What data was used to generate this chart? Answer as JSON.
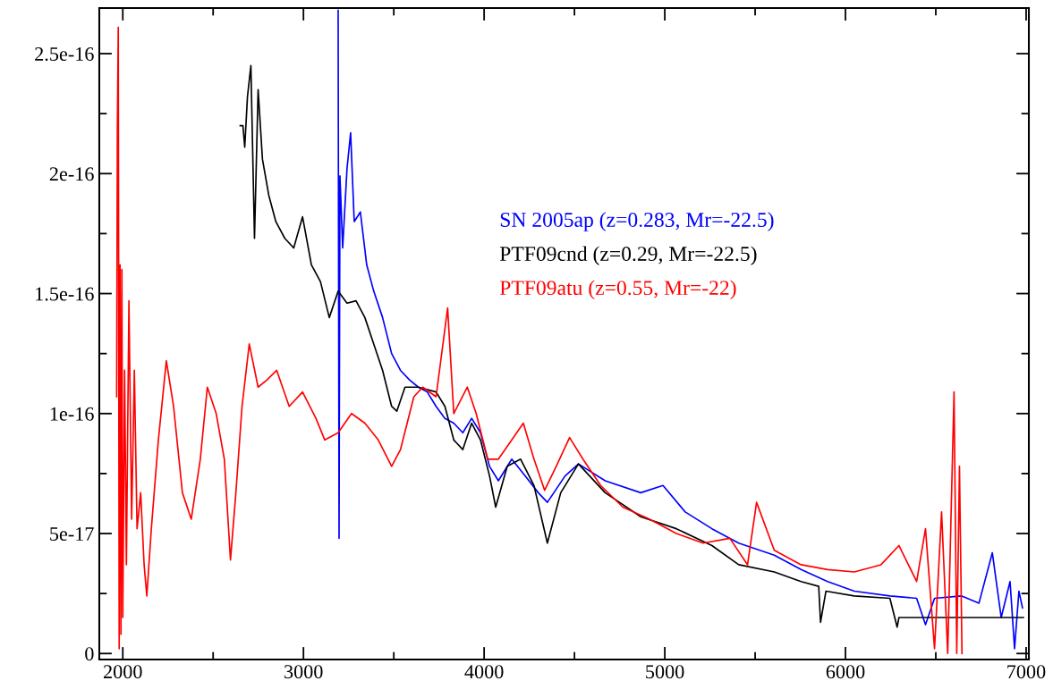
{
  "chart_data": {
    "type": "line",
    "xlim": [
      1870,
      7015
    ],
    "ylim": [
      -2.5e-18,
      2.69e-16
    ],
    "xticks": [
      2000,
      {
        "value": 2500,
        "label": null
      },
      3000,
      {
        "value": 3500,
        "label": null
      },
      4000,
      {
        "value": 4500,
        "label": null
      },
      5000,
      {
        "value": 5500,
        "label": null
      },
      6000,
      {
        "value": 6500,
        "label": null
      },
      7000
    ],
    "yticks": [
      {
        "value": 0,
        "label": "0"
      },
      {
        "value": 2.5e-17,
        "label": null
      },
      {
        "value": 5e-17,
        "label": "5e-17"
      },
      {
        "value": 7.5e-17,
        "label": null
      },
      {
        "value": 1e-16,
        "label": "1e-16"
      },
      {
        "value": 1.25e-16,
        "label": null
      },
      {
        "value": 1.5e-16,
        "label": "1.5e-16"
      },
      {
        "value": 1.75e-16,
        "label": null
      },
      {
        "value": 2e-16,
        "label": "2e-16"
      },
      {
        "value": 2.25e-16,
        "label": null
      },
      {
        "value": 2.5e-16,
        "label": "2.5e-16"
      }
    ],
    "grid": false,
    "legend": "right",
    "marker": "none",
    "line_style": "solid",
    "series": [
      {
        "name": "SN 2005ap (z=0.283, Mr=-22.5)",
        "color": "#0000ff",
        "x": [
          3192,
          3197,
          3202,
          3217,
          3241,
          3261,
          3281,
          3315,
          3350,
          3389,
          3438,
          3488,
          3537,
          3587,
          3636,
          3685,
          3734,
          3783,
          3832,
          3882,
          3931,
          3980,
          4030,
          4079,
          4153,
          4227,
          4300,
          4350,
          4448,
          4522,
          4670,
          4867,
          4990,
          5113,
          5261,
          5409,
          5606,
          5754,
          5901,
          6049,
          6246,
          6394,
          6443,
          6493,
          6641,
          6739,
          6813,
          6862,
          6911,
          6936,
          6960,
          6980
        ],
        "values": [
          2.68e-16,
          4.8e-17,
          1.99e-16,
          1.69e-16,
          2.02e-16,
          2.17e-16,
          1.8e-16,
          1.84e-16,
          1.62e-16,
          1.51e-16,
          1.4e-16,
          1.25e-16,
          1.18e-16,
          1.14e-16,
          1.11e-16,
          1.09e-16,
          1.03e-16,
          9.8e-17,
          9.6e-17,
          9.2e-17,
          9.8e-17,
          9.2e-17,
          7.8e-17,
          7.2e-17,
          8.1e-17,
          7.4e-17,
          6.7e-17,
          6.3e-17,
          7.4e-17,
          7.9e-17,
          7.2e-17,
          6.7e-17,
          7e-17,
          5.9e-17,
          5.2e-17,
          4.6e-17,
          4.1e-17,
          3.5e-17,
          3e-17,
          2.6e-17,
          2.4e-17,
          2.3e-17,
          1.2e-17,
          2.3e-17,
          2.4e-17,
          2.1e-17,
          4.2e-17,
          1.5e-17,
          3e-17,
          2e-18,
          2.6e-17,
          1.9e-17
        ]
      },
      {
        "name": "PTF09cnd (z=0.29, Mr=-22.5)",
        "color": "#000000",
        "x": [
          2650,
          2665,
          2675,
          2690,
          2709,
          2729,
          2749,
          2773,
          2808,
          2847,
          2897,
          2946,
          2995,
          3044,
          3094,
          3143,
          3192,
          3241,
          3291,
          3340,
          3389,
          3438,
          3488,
          3517,
          3562,
          3636,
          3734,
          3783,
          3832,
          3882,
          3931,
          3980,
          4030,
          4064,
          4128,
          4202,
          4276,
          4350,
          4424,
          4522,
          4670,
          4867,
          5064,
          5261,
          5409,
          5606,
          5754,
          5852,
          5862,
          5892,
          6049,
          6246,
          6286,
          6296,
          6985
        ],
        "values": [
          2.2e-16,
          2.2e-16,
          2.11e-16,
          2.32e-16,
          2.45e-16,
          1.73e-16,
          2.35e-16,
          2.06e-16,
          1.91e-16,
          1.8e-16,
          1.73e-16,
          1.69e-16,
          1.82e-16,
          1.62e-16,
          1.55e-16,
          1.4e-16,
          1.51e-16,
          1.46e-16,
          1.47e-16,
          1.4e-16,
          1.29e-16,
          1.18e-16,
          1.03e-16,
          1.01e-16,
          1.11e-16,
          1.11e-16,
          1.09e-16,
          1.03e-16,
          8.9e-17,
          8.5e-17,
          9.6e-17,
          8.9e-17,
          7.4e-17,
          6.1e-17,
          7.8e-17,
          8.1e-17,
          7e-17,
          4.6e-17,
          6.7e-17,
          7.9e-17,
          6.7e-17,
          5.7e-17,
          5.2e-17,
          4.5e-17,
          3.7e-17,
          3.4e-17,
          3e-17,
          2.8e-17,
          1.3e-17,
          2.6e-17,
          2.4e-17,
          2.3e-17,
          1.1e-17,
          1.5e-17,
          1.5e-17
        ]
      },
      {
        "name": "PTF09atu (z=0.55, Mr=-22)",
        "color": "#ff0000",
        "x": [
          1966,
          1970,
          1975,
          1980,
          1985,
          1990,
          1995,
          2000,
          2010,
          2020,
          2034,
          2049,
          2064,
          2079,
          2099,
          2118,
          2133,
          2158,
          2197,
          2241,
          2281,
          2330,
          2379,
          2429,
          2468,
          2517,
          2562,
          2596,
          2626,
          2660,
          2700,
          2749,
          2798,
          2852,
          2921,
          2995,
          3069,
          3118,
          3192,
          3266,
          3340,
          3414,
          3488,
          3537,
          3611,
          3660,
          3734,
          3798,
          3832,
          3907,
          3956,
          4020,
          4079,
          4153,
          4217,
          4276,
          4335,
          4399,
          4473,
          4547,
          4645,
          4768,
          4916,
          5064,
          5212,
          5360,
          5458,
          5508,
          5606,
          5754,
          5901,
          6049,
          6197,
          6296,
          6394,
          6443,
          6493,
          6532,
          6566,
          6601,
          6616,
          6631,
          6645
        ],
        "values": [
          1.07e-16,
          2.19e-16,
          2.61e-16,
          2e-18,
          1.62e-16,
          8e-18,
          1.6e-16,
          1.5e-17,
          1.18e-16,
          3.7e-17,
          1.47e-16,
          5.6e-17,
          1.18e-16,
          5.2e-17,
          6.7e-17,
          3.7e-17,
          2.4e-17,
          5.2e-17,
          8.9e-17,
          1.22e-16,
          1.03e-16,
          6.7e-17,
          5.6e-17,
          8.1e-17,
          1.11e-16,
          1e-16,
          8.1e-17,
          3.9e-17,
          6.7e-17,
          1.03e-16,
          1.29e-16,
          1.11e-16,
          1.14e-16,
          1.18e-16,
          1.03e-16,
          1.09e-16,
          9.8e-17,
          8.9e-17,
          9.2e-17,
          1e-16,
          9.6e-17,
          8.9e-17,
          7.8e-17,
          8.5e-17,
          1.07e-16,
          1.11e-16,
          1.07e-16,
          1.44e-16,
          1e-16,
          1.11e-16,
          1e-16,
          8.1e-17,
          8.1e-17,
          8.9e-17,
          9.6e-17,
          8.1e-17,
          6.8e-17,
          7.8e-17,
          9e-17,
          8.1e-17,
          7e-17,
          6.1e-17,
          5.6e-17,
          5e-17,
          4.6e-17,
          4.8e-17,
          3.7e-17,
          6.3e-17,
          4.3e-17,
          3.7e-17,
          3.5e-17,
          3.4e-17,
          3.7e-17,
          4.5e-17,
          3e-17,
          5.2e-17,
          2e-18,
          5.9e-17,
          0,
          1.09e-16,
          0,
          7.8e-17,
          0
        ]
      }
    ]
  }
}
